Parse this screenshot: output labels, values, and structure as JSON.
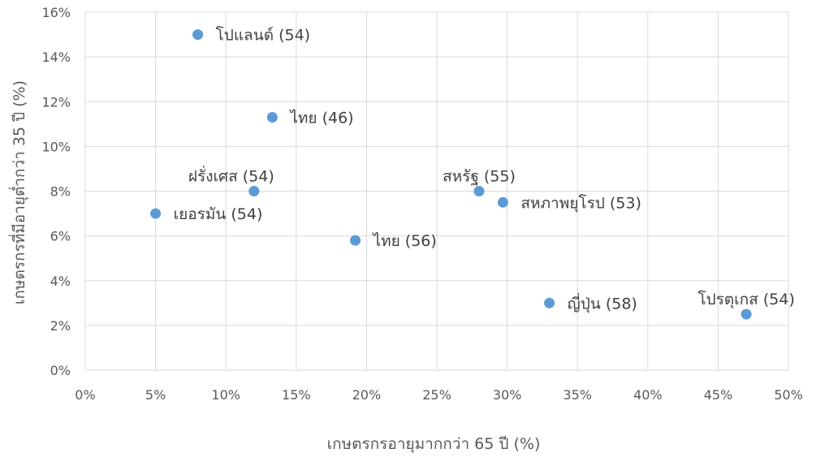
{
  "chart_data": {
    "type": "scatter",
    "xlabel": "เกษตรกรอายุมากกว่า 65 ปี (%)",
    "ylabel": "เกษตรกรที่มีอายุต่ำกว่า 35 ปี (%)",
    "xlim": [
      0,
      50
    ],
    "ylim": [
      0,
      16
    ],
    "x_ticks": [
      "0%",
      "5%",
      "10%",
      "15%",
      "20%",
      "25%",
      "30%",
      "35%",
      "40%",
      "45%",
      "50%"
    ],
    "y_ticks": [
      "0%",
      "2%",
      "4%",
      "6%",
      "8%",
      "10%",
      "12%",
      "14%",
      "16%"
    ],
    "grid": true,
    "marker_color": "#5b9bd5",
    "points": [
      {
        "label": "โปแลนด์ (54)",
        "x": 8.0,
        "y": 15.0,
        "pos": "right"
      },
      {
        "label": "ไทย (46)",
        "x": 13.3,
        "y": 11.3,
        "pos": "right"
      },
      {
        "label": "ฝรั่งเศส (54)",
        "x": 12.0,
        "y": 8.0,
        "pos": "above-left"
      },
      {
        "label": "เยอรมัน (54)",
        "x": 5.0,
        "y": 7.0,
        "pos": "right"
      },
      {
        "label": "ไทย (56)",
        "x": 19.2,
        "y": 5.8,
        "pos": "right"
      },
      {
        "label": "สหรัฐ (55)",
        "x": 28.0,
        "y": 8.0,
        "pos": "above"
      },
      {
        "label": "สหภาพยุโรป (53)",
        "x": 29.7,
        "y": 7.5,
        "pos": "right"
      },
      {
        "label": "ญี่ปุ่น (58)",
        "x": 33.0,
        "y": 3.0,
        "pos": "right"
      },
      {
        "label": "โปรตุเกส (54)",
        "x": 47.0,
        "y": 2.5,
        "pos": "above"
      }
    ]
  }
}
